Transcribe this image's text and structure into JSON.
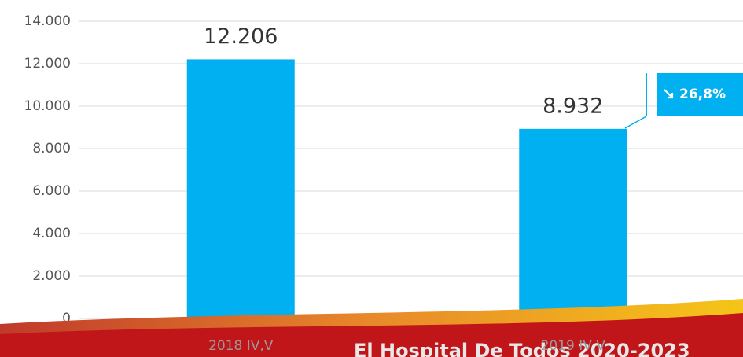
{
  "chart_data": {
    "type": "bar",
    "categories": [
      "2018 IV,V",
      "2019 IV,V"
    ],
    "values": [
      12206,
      8932
    ],
    "value_labels": [
      "12.206",
      "8.932"
    ],
    "color": "#00b0f0",
    "ylim": [
      0,
      14000
    ],
    "yticks": [
      0,
      {
        "value": 2000,
        "label": "2.000"
      },
      {
        "value": 4000,
        "label": "4.000"
      },
      {
        "value": 6000,
        "label": "6.000"
      },
      {
        "value": 8000,
        "label": "8.000"
      },
      {
        "value": 10000,
        "label": "10.000"
      },
      {
        "value": 12000,
        "label": "12.000"
      },
      {
        "value": 14000,
        "label": "14.000"
      }
    ],
    "grid": true,
    "annotation": "26,8%",
    "banner": "El Hospital De Todos 2020-2023"
  }
}
